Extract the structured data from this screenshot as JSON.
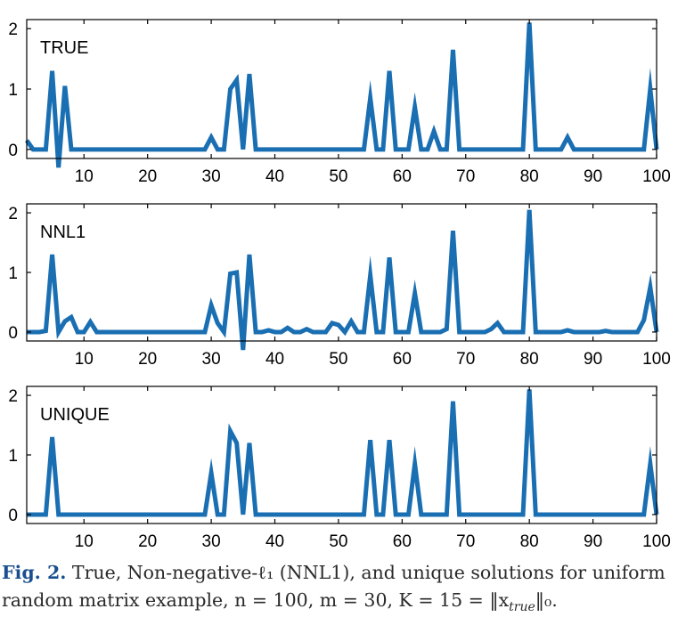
{
  "caption": {
    "figure_number": "Fig. 2.",
    "line1": "True, Non-negative-ℓ₁ (NNL1), and unique solutions for uniform",
    "line2": "random matrix example, n = 100, m = 30, K = 15 = ‖x",
    "subscript": "true",
    "line2_end": "‖₀."
  },
  "colors": {
    "series": "#1a6fb3",
    "axis": "#000000"
  },
  "chart_data": [
    {
      "type": "line",
      "label": "TRUE",
      "xlim": [
        1,
        100
      ],
      "ylim": [
        -0.15,
        2.15
      ],
      "xticks": [
        10,
        20,
        30,
        40,
        50,
        60,
        70,
        80,
        90,
        100
      ],
      "yticks": [
        0,
        1,
        2
      ],
      "grid": false,
      "series": [
        {
          "values": [
            0.15,
            0,
            0,
            0,
            1.3,
            -0.3,
            1.05,
            0,
            0,
            0,
            0,
            0,
            0,
            0,
            0,
            0,
            0,
            0,
            0,
            0,
            0,
            0,
            0,
            0,
            0,
            0,
            0,
            0,
            0,
            0.2,
            0,
            0,
            1,
            1.15,
            0,
            1.25,
            0,
            0,
            0,
            0,
            0,
            0,
            0,
            0,
            0,
            0,
            0,
            0,
            0,
            0,
            0,
            0,
            0,
            0,
            0.85,
            0,
            0,
            1.3,
            0,
            0,
            0,
            0.7,
            0,
            0,
            0.3,
            0,
            0,
            1.65,
            0,
            0,
            0,
            0,
            0,
            0,
            0,
            0,
            0,
            0,
            0,
            2.1,
            0,
            0,
            0,
            0,
            0,
            0.2,
            0,
            0,
            0,
            0,
            0,
            0,
            0,
            0,
            0,
            0,
            0,
            0,
            1,
            0
          ]
        }
      ]
    },
    {
      "type": "line",
      "label": "NNL1",
      "xlim": [
        1,
        100
      ],
      "ylim": [
        -0.15,
        2.15
      ],
      "xticks": [
        10,
        20,
        30,
        40,
        50,
        60,
        70,
        80,
        90,
        100
      ],
      "yticks": [
        0,
        1,
        2
      ],
      "grid": false,
      "series": [
        {
          "values": [
            0,
            0,
            0,
            0.02,
            1.3,
            0,
            0.18,
            0.25,
            0,
            0,
            0.17,
            0,
            0,
            0,
            0,
            0,
            0,
            0,
            0,
            0,
            0,
            0,
            0,
            0,
            0,
            0,
            0,
            0,
            0,
            0.45,
            0.15,
            0,
            0.98,
            1,
            -0.3,
            1.3,
            0,
            0,
            0.03,
            0,
            0,
            0.07,
            0,
            0,
            0.05,
            0,
            0,
            0,
            0.15,
            0.12,
            0,
            0.18,
            0,
            0,
            0.95,
            0,
            0,
            1.25,
            0,
            0,
            0,
            0.65,
            0,
            0,
            0,
            0,
            0.05,
            1.7,
            0,
            0,
            0,
            0,
            0,
            0.05,
            0.15,
            0,
            0,
            0,
            0,
            2.05,
            0,
            0,
            0,
            0,
            0,
            0.03,
            0,
            0,
            0,
            0,
            0,
            0.02,
            0,
            0,
            0,
            0,
            0,
            0.2,
            0.75,
            0
          ]
        }
      ]
    },
    {
      "type": "line",
      "label": "UNIQUE",
      "xlim": [
        1,
        100
      ],
      "ylim": [
        -0.15,
        2.15
      ],
      "xticks": [
        10,
        20,
        30,
        40,
        50,
        60,
        70,
        80,
        90,
        100
      ],
      "yticks": [
        0,
        1,
        2
      ],
      "grid": false,
      "series": [
        {
          "values": [
            0,
            0,
            0,
            0,
            1.3,
            0,
            0,
            0,
            0,
            0,
            0,
            0,
            0,
            0,
            0,
            0,
            0,
            0,
            0,
            0,
            0,
            0,
            0,
            0,
            0,
            0,
            0,
            0,
            0,
            0.7,
            0,
            0,
            1.4,
            1.2,
            0,
            1.2,
            0,
            0,
            0,
            0,
            0,
            0,
            0,
            0,
            0,
            0,
            0,
            0,
            0,
            0,
            0,
            0,
            0,
            0,
            1.25,
            0,
            0,
            1.25,
            0,
            0,
            0,
            0.85,
            0,
            0,
            0,
            0,
            0,
            1.9,
            0,
            0,
            0,
            0,
            0,
            0,
            0,
            0,
            0,
            0,
            0,
            2.1,
            0,
            0,
            0,
            0,
            0,
            0,
            0,
            0,
            0,
            0,
            0,
            0,
            0,
            0,
            0,
            0,
            0,
            0,
            0.85,
            0
          ]
        }
      ]
    }
  ]
}
